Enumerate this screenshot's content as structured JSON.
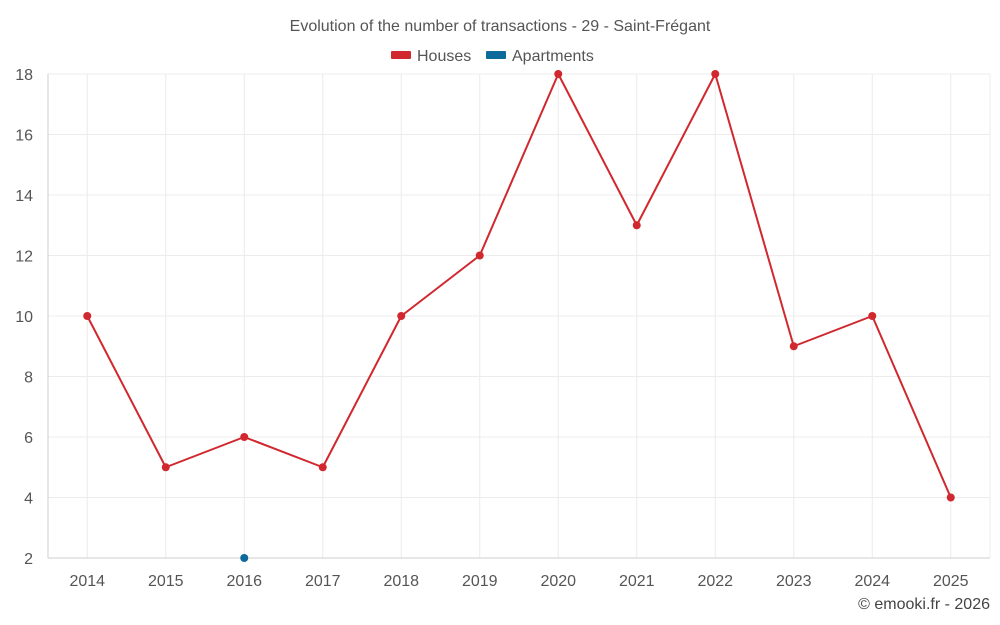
{
  "chart_data": {
    "type": "line",
    "title": "Evolution of the number of transactions - 29 - Saint-Frégant",
    "categories": [
      "2014",
      "2015",
      "2016",
      "2017",
      "2018",
      "2019",
      "2020",
      "2021",
      "2022",
      "2023",
      "2024",
      "2025"
    ],
    "yticks": [
      "2",
      "4",
      "6",
      "8",
      "10",
      "12",
      "14",
      "16",
      "18"
    ],
    "ylim": [
      2,
      18
    ],
    "grid": true,
    "legend_position": "top-center",
    "series": [
      {
        "name": "Houses",
        "color": "#d0282e",
        "values": [
          10,
          5,
          6,
          5,
          10,
          12,
          18,
          13,
          18,
          9,
          10,
          4
        ]
      },
      {
        "name": "Apartments",
        "color": "#0d6a9a",
        "values": [
          null,
          null,
          2,
          null,
          null,
          null,
          null,
          null,
          null,
          null,
          null,
          null
        ]
      }
    ],
    "credit": "© emooki.fr - 2026"
  }
}
